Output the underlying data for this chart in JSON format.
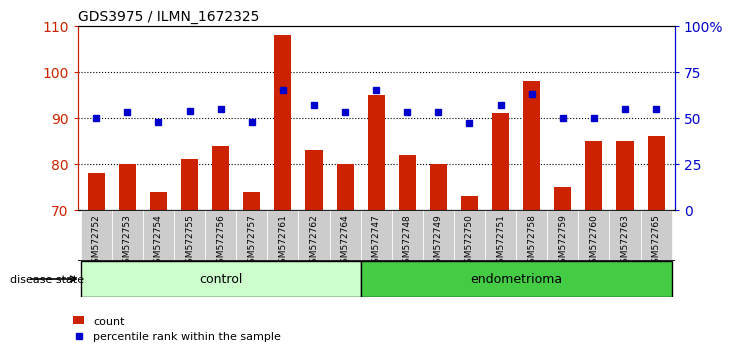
{
  "title": "GDS3975 / ILMN_1672325",
  "samples": [
    "GSM572752",
    "GSM572753",
    "GSM572754",
    "GSM572755",
    "GSM572756",
    "GSM572757",
    "GSM572761",
    "GSM572762",
    "GSM572764",
    "GSM572747",
    "GSM572748",
    "GSM572749",
    "GSM572750",
    "GSM572751",
    "GSM572758",
    "GSM572759",
    "GSM572760",
    "GSM572763",
    "GSM572765"
  ],
  "bar_values": [
    78,
    80,
    74,
    81,
    84,
    74,
    108,
    83,
    80,
    95,
    82,
    80,
    73,
    91,
    98,
    75,
    85,
    85,
    86
  ],
  "dot_values": [
    50,
    53,
    48,
    54,
    55,
    48,
    65,
    57,
    53,
    65,
    53,
    53,
    47,
    57,
    63,
    50,
    50,
    55,
    55
  ],
  "n_control": 9,
  "n_endometrioma": 10,
  "ylim_left": [
    70,
    110
  ],
  "ylim_right": [
    0,
    100
  ],
  "yticks_left": [
    70,
    80,
    90,
    100,
    110
  ],
  "yticks_right": [
    0,
    25,
    50,
    75,
    100
  ],
  "ytick_labels_right": [
    "0",
    "25",
    "50",
    "75",
    "100%"
  ],
  "bar_color": "#cc2200",
  "dot_color": "#0000cc",
  "control_bg": "#ccffcc",
  "endometrioma_bg": "#44cc44",
  "tick_bg": "#cccccc",
  "disease_state_label": "disease state",
  "control_label": "control",
  "endometrioma_label": "endometrioma",
  "legend_count": "count",
  "legend_percentile": "percentile rank within the sample"
}
